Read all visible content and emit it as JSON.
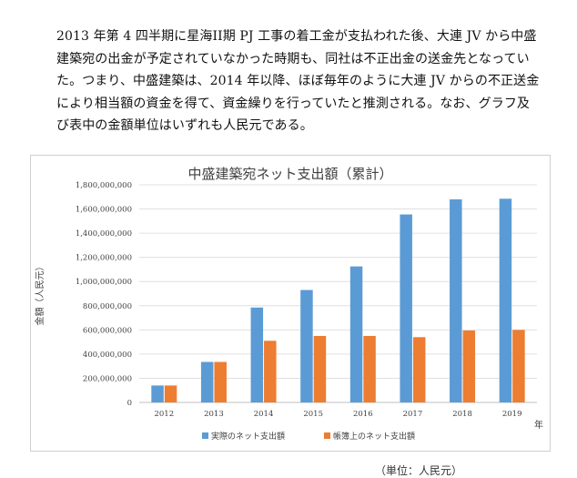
{
  "paragraph": {
    "lines": [
      "2013 年第 4 四半期に星海II期 PJ 工事の着工金が支払われた後、大連 JV から中盛",
      "建築宛の出金が予定されていなかった時期も、同社は不正出金の送金先となってい",
      "た。つまり、中盛建築は、2014 年以降、ほぼ毎年のように大連 JV からの不正送金",
      "により相当額の資金を得て、資金繰りを行っていたと推測される。なお、グラフ及",
      "び表中の金額単位はいずれも人民元である。"
    ]
  },
  "chart_data": {
    "type": "bar",
    "title": "中盛建築宛ネット支出額（累計）",
    "xlabel": "年",
    "ylabel": "金額（人民元）",
    "categories": [
      "2012",
      "2013",
      "2014",
      "2015",
      "2016",
      "2017",
      "2018",
      "2019"
    ],
    "ylim": [
      0,
      1800000000
    ],
    "yticks": [
      0,
      200000000,
      400000000,
      600000000,
      800000000,
      1000000000,
      1200000000,
      1400000000,
      1600000000,
      1800000000
    ],
    "ytick_labels": [
      "0",
      "200,000,000",
      "400,000,000",
      "600,000,000",
      "800,000,000",
      "1,000,000,000",
      "1,200,000,000",
      "1,400,000,000",
      "1,600,000,000",
      "1,800,000,000"
    ],
    "grid": true,
    "legend_position": "bottom",
    "series": [
      {
        "name": "実際のネット支出額",
        "color": "#5b9bd5",
        "values": [
          140000000,
          335000000,
          785000000,
          930000000,
          1125000000,
          1555000000,
          1680000000,
          1685000000
        ]
      },
      {
        "name": "帳簿上のネット支出額",
        "color": "#ed7d31",
        "values": [
          140000000,
          335000000,
          510000000,
          550000000,
          550000000,
          540000000,
          595000000,
          600000000
        ]
      }
    ]
  },
  "footer": {
    "note": "（単位：人民元）"
  }
}
